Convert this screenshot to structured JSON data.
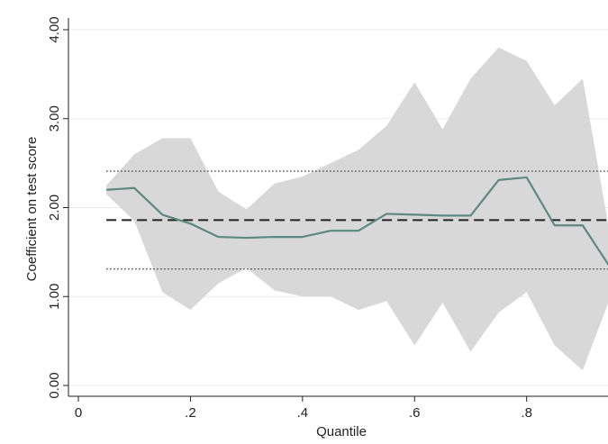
{
  "chart_data": {
    "type": "line",
    "xlabel": "Quantile",
    "ylabel": "Coefficient on test score",
    "xlim": [
      0,
      0.95
    ],
    "ylim": [
      0,
      4
    ],
    "x_ticks": [
      {
        "value": 0,
        "label": "0"
      },
      {
        "value": 0.2,
        "label": ".2"
      },
      {
        "value": 0.4,
        "label": ".4"
      },
      {
        "value": 0.6,
        "label": ".6"
      },
      {
        "value": 0.8,
        "label": ".8"
      }
    ],
    "y_ticks": [
      {
        "value": 0,
        "label": "0.00"
      },
      {
        "value": 1,
        "label": "1.00"
      },
      {
        "value": 2,
        "label": "2.00"
      },
      {
        "value": 3,
        "label": "3.00"
      },
      {
        "value": 4,
        "label": "4.00"
      }
    ],
    "grid": true,
    "x": [
      0.05,
      0.1,
      0.15,
      0.2,
      0.25,
      0.3,
      0.35,
      0.4,
      0.45,
      0.5,
      0.55,
      0.6,
      0.65,
      0.7,
      0.75,
      0.8,
      0.85,
      0.9,
      0.95
    ],
    "series": [
      {
        "style": "solid",
        "color": "#5b8a80",
        "values": [
          2.2,
          2.22,
          1.92,
          1.82,
          1.67,
          1.66,
          1.67,
          1.67,
          1.74,
          1.74,
          1.93,
          1.92,
          1.91,
          1.91,
          2.31,
          2.34,
          1.8,
          1.8,
          1.32
        ]
      }
    ],
    "band": {
      "color": "#d8d8d8",
      "lower": [
        2.15,
        1.85,
        1.05,
        0.85,
        1.15,
        1.32,
        1.07,
        1.0,
        1.0,
        0.85,
        0.95,
        0.45,
        0.93,
        0.38,
        0.82,
        1.05,
        0.45,
        0.17,
        1.0
      ],
      "upper": [
        2.25,
        2.6,
        2.78,
        2.78,
        2.18,
        1.98,
        2.27,
        2.35,
        2.5,
        2.65,
        2.92,
        3.41,
        2.88,
        3.45,
        3.8,
        3.65,
        3.15,
        3.45,
        1.65
      ]
    },
    "reference_lines": [
      {
        "y": 1.86,
        "style": "dashed",
        "color": "#222222"
      },
      {
        "y": 2.41,
        "style": "dotted",
        "color": "#444444"
      },
      {
        "y": 1.31,
        "style": "dotted",
        "color": "#444444"
      }
    ]
  }
}
